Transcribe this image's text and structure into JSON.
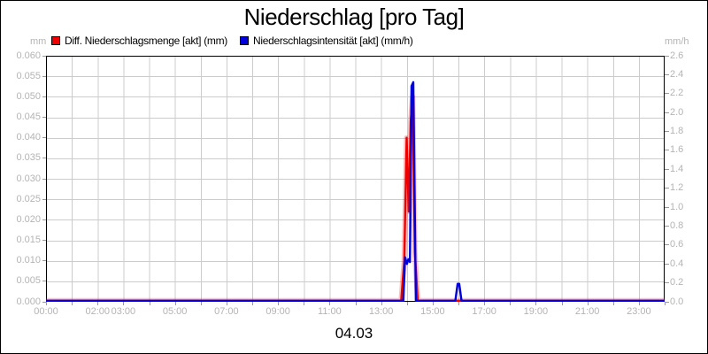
{
  "title": "Niederschlag [pro Tag]",
  "legend": [
    {
      "label": "Diff. Niederschlagsmenge [akt] (mm)",
      "color": "#ee0000"
    },
    {
      "label": "Niederschlagsintensität [akt] (mm/h)",
      "color": "#0000dd"
    }
  ],
  "axis_unit_left": "mm",
  "axis_unit_right": "mm/h",
  "date_label": "04.03",
  "colors": {
    "series_red": "#ee0000",
    "series_red_glow": "rgba(255,0,0,0.25)",
    "series_blue": "#0000dd",
    "gridline": "#cccccc",
    "axis_text": "#b4b4b4",
    "tick": "#999999",
    "border": "#000000"
  },
  "chart_data": {
    "type": "line",
    "title": "Niederschlag [pro Tag]",
    "date_label": "04.03",
    "x_range_hours": [
      0,
      24
    ],
    "grid": "on",
    "gridline_every_hours": 1,
    "left_axis": {
      "unit": "mm",
      "min": 0.0,
      "max": 0.06,
      "step": 0.005,
      "ticks": [
        "0.000",
        "0.005",
        "0.010",
        "0.015",
        "0.020",
        "0.025",
        "0.030",
        "0.035",
        "0.040",
        "0.045",
        "0.050",
        "0.055",
        "0.060"
      ]
    },
    "right_axis": {
      "unit": "mm/h",
      "min": 0.0,
      "max": 2.6,
      "step": 0.2,
      "ticks": [
        "0.0",
        "0.2",
        "0.4",
        "0.6",
        "0.8",
        "1.0",
        "1.2",
        "1.4",
        "1.6",
        "1.8",
        "2.0",
        "2.2",
        "2.4",
        "2.6"
      ]
    },
    "x_labels": [
      {
        "hour": 0,
        "label": "00:00"
      },
      {
        "hour": 2,
        "label": "02:00"
      },
      {
        "hour": 3,
        "label": "03:00"
      },
      {
        "hour": 5,
        "label": "05:00"
      },
      {
        "hour": 7,
        "label": "07:00"
      },
      {
        "hour": 9,
        "label": "09:00"
      },
      {
        "hour": 11,
        "label": "11:00"
      },
      {
        "hour": 13,
        "label": "13:00"
      },
      {
        "hour": 15,
        "label": "15:00"
      },
      {
        "hour": 17,
        "label": "17:00"
      },
      {
        "hour": 19,
        "label": "19:00"
      },
      {
        "hour": 21,
        "label": "21:00"
      },
      {
        "hour": 23,
        "label": "23:00"
      }
    ],
    "series": [
      {
        "name": "Diff. Niederschlagsmenge [akt] (mm)",
        "axis": "left",
        "color": "#ee0000",
        "points": [
          [
            0,
            0
          ],
          [
            13.78,
            0
          ],
          [
            13.9,
            0.01
          ],
          [
            13.99,
            0.04
          ],
          [
            14.07,
            0.022
          ],
          [
            14.15,
            0.044
          ],
          [
            14.22,
            0.05
          ],
          [
            14.31,
            0.012
          ],
          [
            14.42,
            0
          ],
          [
            24,
            0
          ]
        ]
      },
      {
        "name": "Niederschlagsintensität [akt] (mm/h)",
        "axis": "right",
        "color": "#0000dd",
        "points": [
          [
            0,
            0
          ],
          [
            13.86,
            0
          ],
          [
            13.93,
            0.47
          ],
          [
            14.0,
            0.4
          ],
          [
            14.06,
            0.45
          ],
          [
            14.12,
            0.42
          ],
          [
            14.18,
            2.28
          ],
          [
            14.25,
            2.32
          ],
          [
            14.35,
            0
          ],
          [
            15.88,
            0
          ],
          [
            15.97,
            0.19
          ],
          [
            16.03,
            0.19
          ],
          [
            16.12,
            0
          ],
          [
            24,
            0
          ]
        ]
      }
    ]
  }
}
